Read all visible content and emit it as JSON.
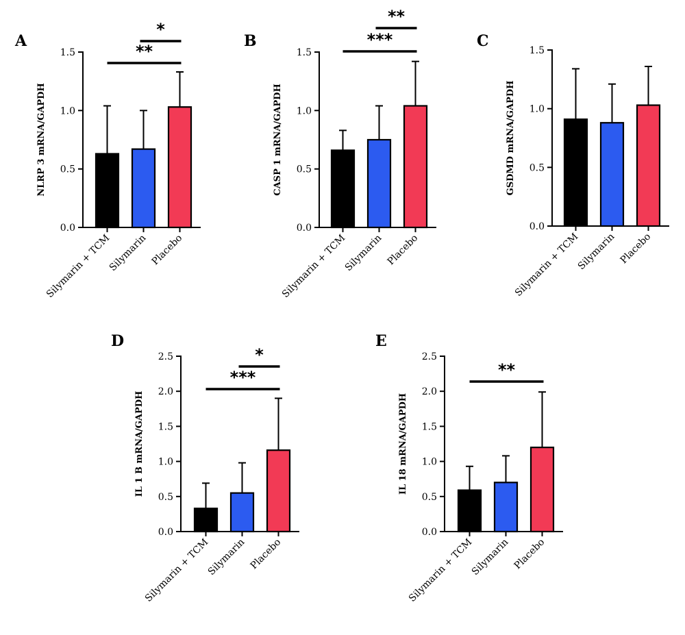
{
  "chart_data": [
    {
      "type": "bar",
      "panel": "A",
      "ylabel": "NLRP 3 mRNA/GAPDH",
      "categories": [
        "Silymarin + TCM",
        "Silymarin",
        "Placebo"
      ],
      "values": [
        0.63,
        0.67,
        1.03
      ],
      "errors": [
        0.41,
        0.33,
        0.3
      ],
      "ylim": [
        0,
        1.5
      ],
      "yticks": [
        0.0,
        0.5,
        1.0,
        1.5
      ],
      "tick_labels": [
        "0.0",
        "0.5",
        "1.0",
        "1.5"
      ],
      "significance": [
        {
          "from": 0,
          "to": 2,
          "label": "**"
        },
        {
          "from": 1,
          "to": 2,
          "label": "*"
        }
      ]
    },
    {
      "type": "bar",
      "panel": "B",
      "ylabel": "CASP 1 mRNA/GAPDH",
      "categories": [
        "Silymarin + TCM",
        "Silymarin",
        "Placebo"
      ],
      "values": [
        0.66,
        0.75,
        1.04
      ],
      "errors": [
        0.17,
        0.29,
        0.38
      ],
      "ylim": [
        0,
        1.5
      ],
      "yticks": [
        0.0,
        0.5,
        1.0,
        1.5
      ],
      "tick_labels": [
        "0.0",
        "0.5",
        "1.0",
        "1.5"
      ],
      "significance": [
        {
          "from": 0,
          "to": 2,
          "label": "***"
        },
        {
          "from": 1,
          "to": 2,
          "label": "**"
        }
      ]
    },
    {
      "type": "bar",
      "panel": "C",
      "ylabel": "GSDMD mRNA/GAPDH",
      "categories": [
        "Silymarin + TCM",
        "Silymarin",
        "Placebo"
      ],
      "values": [
        0.91,
        0.88,
        1.03
      ],
      "errors": [
        0.43,
        0.33,
        0.33
      ],
      "ylim": [
        0,
        1.5
      ],
      "yticks": [
        0.0,
        0.5,
        1.0,
        1.5
      ],
      "tick_labels": [
        "0.0",
        "0.5",
        "1.0",
        "1.5"
      ],
      "significance": []
    },
    {
      "type": "bar",
      "panel": "D",
      "ylabel": "IL 1 B mRNA/GAPDH",
      "categories": [
        "Silymarin + TCM",
        "Silymarin",
        "Placebo"
      ],
      "values": [
        0.33,
        0.55,
        1.16
      ],
      "errors": [
        0.36,
        0.43,
        0.74
      ],
      "ylim": [
        0,
        2.5
      ],
      "yticks": [
        0.0,
        0.5,
        1.0,
        1.5,
        2.0,
        2.5
      ],
      "tick_labels": [
        "0.0",
        "0.5",
        "1.0",
        "1.5",
        "2.0",
        "2.5"
      ],
      "significance": [
        {
          "from": 0,
          "to": 2,
          "label": "***"
        },
        {
          "from": 1,
          "to": 2,
          "label": "*"
        }
      ]
    },
    {
      "type": "bar",
      "panel": "E",
      "ylabel": "IL 18 mRNA/GAPDH",
      "categories": [
        "Silymarin + TCM",
        "Silymarin",
        "Placebo"
      ],
      "values": [
        0.59,
        0.7,
        1.2
      ],
      "errors": [
        0.34,
        0.38,
        0.79
      ],
      "ylim": [
        0,
        2.5
      ],
      "yticks": [
        0.0,
        0.5,
        1.0,
        1.5,
        2.0,
        2.5
      ],
      "tick_labels": [
        "0.0",
        "0.5",
        "1.0",
        "1.5",
        "2.0",
        "2.5"
      ],
      "significance": [
        {
          "from": 0,
          "to": 2,
          "label": "**"
        }
      ]
    }
  ],
  "colors": {
    "Silymarin + TCM": "#000000",
    "Silymarin": "#2c5bf0",
    "Placebo": "#f23a55"
  }
}
